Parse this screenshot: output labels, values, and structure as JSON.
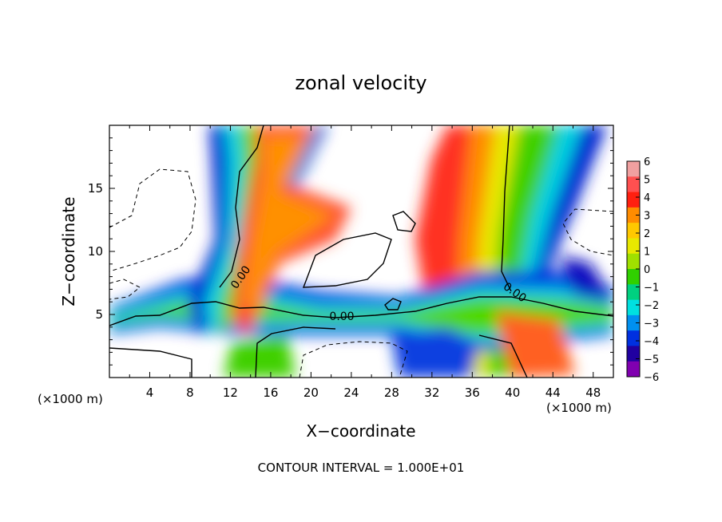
{
  "chart_data": {
    "type": "heatmap",
    "title": "zonal velocity",
    "xlabel": "X−coordinate",
    "ylabel": "Z−coordinate",
    "x_unit_label_left": "(×1000 m)",
    "x_unit_label_right": "(×1000 m)",
    "xlim": [
      0,
      50
    ],
    "ylim": [
      0,
      20
    ],
    "x_ticks": [
      4,
      8,
      12,
      16,
      20,
      24,
      28,
      32,
      36,
      40,
      44,
      48
    ],
    "y_ticks": [
      5,
      10,
      15
    ],
    "colorbar": {
      "ticks": [
        6,
        5,
        4,
        3,
        2,
        1,
        0,
        -1,
        -2,
        -3,
        -4,
        -5,
        -6
      ],
      "tick_labels": [
        "6",
        "5",
        "4",
        "3",
        "2",
        "1",
        "0",
        "−1",
        "−2",
        "−3",
        "−4",
        "−5",
        "−6"
      ],
      "colors": [
        "#f0a0a0",
        "#ff5050",
        "#ff2010",
        "#ff8c00",
        "#ffc800",
        "#e8e800",
        "#a0e000",
        "#30d000",
        "#00d080",
        "#00e0e0",
        "#0090f0",
        "#0030e0",
        "#2000a0",
        "#8000b0"
      ]
    },
    "contour_labels": [
      "0.00",
      "0.00",
      "0.00"
    ],
    "footer": "CONTOUR INTERVAL = 1.000E+01"
  }
}
